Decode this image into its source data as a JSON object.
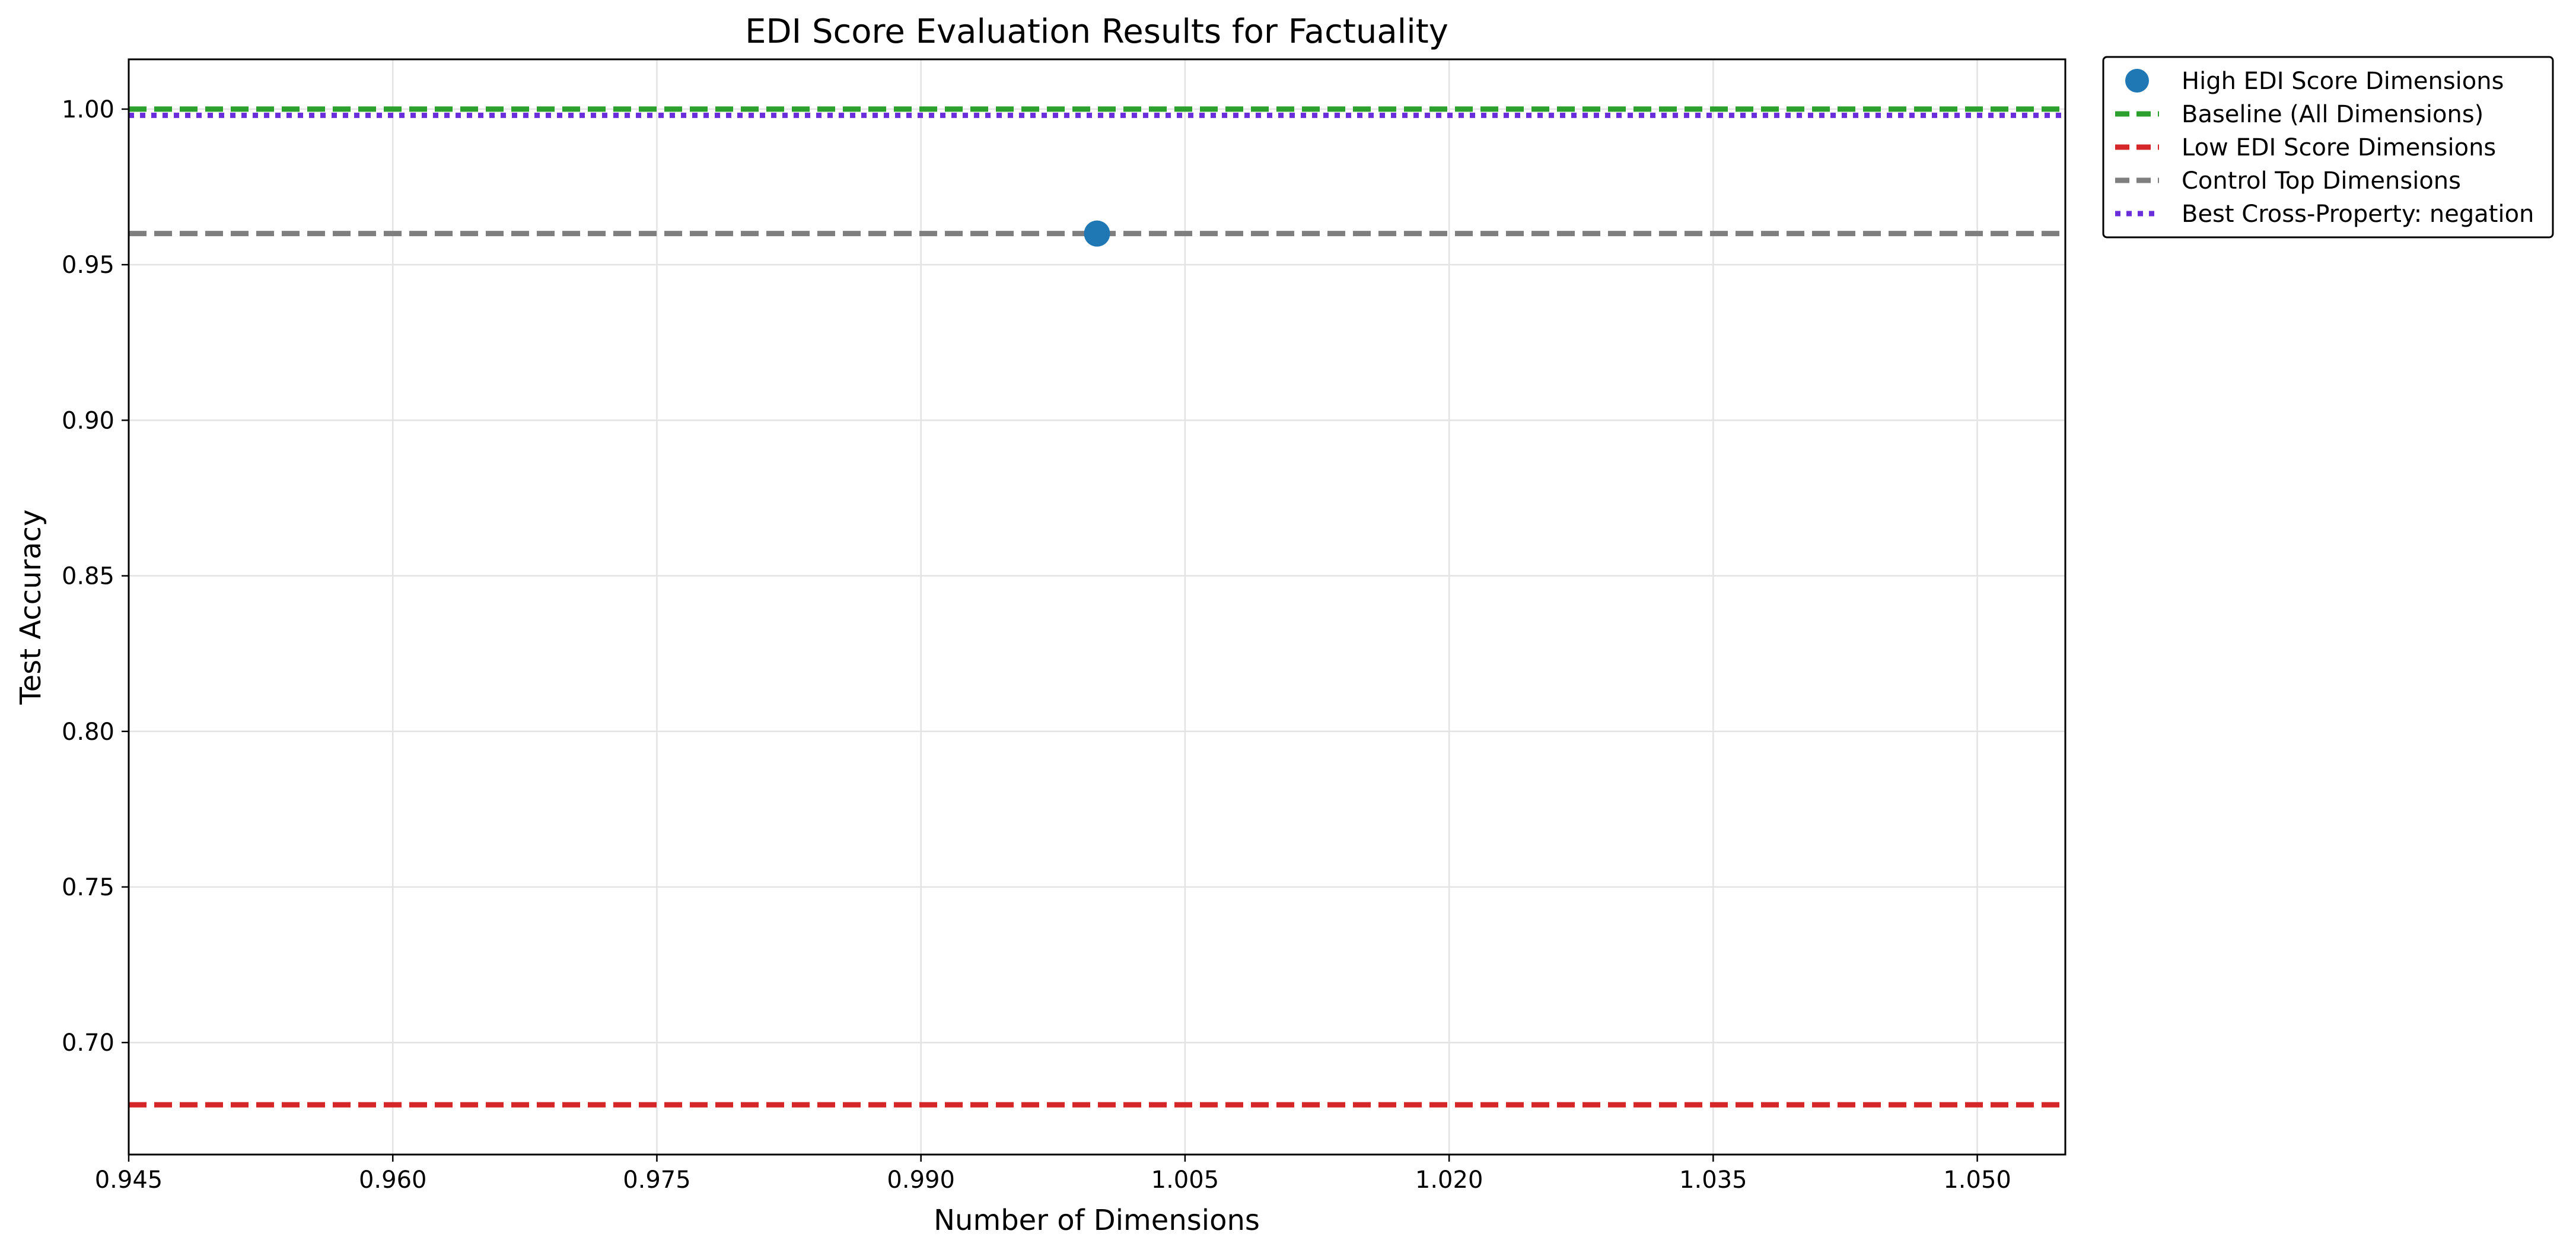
{
  "chart_data": {
    "type": "scatter",
    "title": "EDI Score Evaluation Results for Factuality",
    "xlabel": "Number of Dimensions",
    "ylabel": "Test Accuracy",
    "xlim": [
      0.945,
      1.055
    ],
    "ylim": [
      0.664,
      1.016
    ],
    "x_ticks": [
      "0.945",
      "0.960",
      "0.975",
      "0.990",
      "1.005",
      "1.020",
      "1.035",
      "1.050"
    ],
    "x_tick_values": [
      0.945,
      0.96,
      0.975,
      0.99,
      1.005,
      1.02,
      1.035,
      1.05
    ],
    "y_ticks": [
      "0.70",
      "0.75",
      "0.80",
      "0.85",
      "0.90",
      "0.95",
      "1.00"
    ],
    "y_tick_values": [
      0.7,
      0.75,
      0.8,
      0.85,
      0.9,
      0.95,
      1.0
    ],
    "grid": true,
    "legend_position": "outside-right-top",
    "series": [
      {
        "name": "High EDI Score Dimensions",
        "kind": "points",
        "color": "#1f77b4",
        "points": [
          {
            "x": 1.0,
            "y": 0.96
          }
        ]
      },
      {
        "name": "Baseline (All Dimensions)",
        "kind": "hline",
        "color": "#2ca02c",
        "style": "dashed",
        "y": 1.0
      },
      {
        "name": "Low EDI Score Dimensions",
        "kind": "hline",
        "color": "#d62728",
        "style": "dashed",
        "y": 0.68
      },
      {
        "name": "Control Top Dimensions",
        "kind": "hline",
        "color": "#7f7f7f",
        "style": "dashed",
        "y": 0.96
      },
      {
        "name": "Best Cross-Property: negation",
        "kind": "hline",
        "color": "#6a2edb",
        "style": "dotted",
        "y": 0.998
      }
    ]
  }
}
